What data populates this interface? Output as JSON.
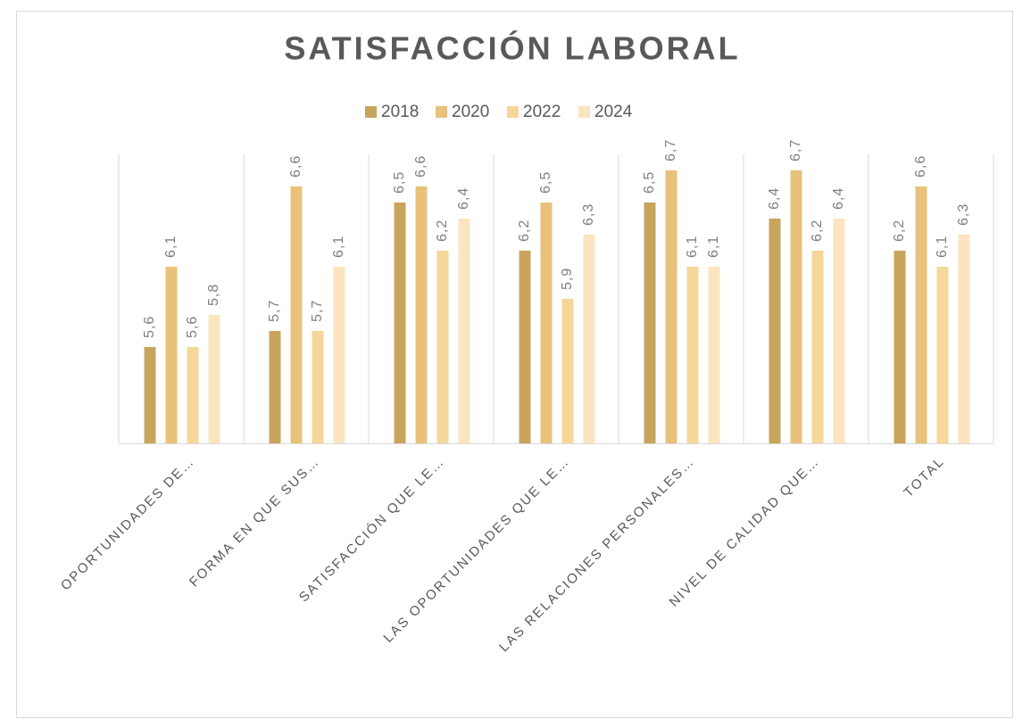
{
  "chart_data": {
    "type": "bar",
    "title": "SATISFACCIÓN LABORAL",
    "categories": [
      "OPORTUNIDADES DE…",
      "FORMA EN QUE SUS…",
      "SATISFACCIÓN QUE LE…",
      "LAS OPORTUNIDADES QUE LE…",
      "LAS RELACIONES PERSONALES…",
      "NIVEL DE CALIDAD QUE…",
      "TOTAL"
    ],
    "series": [
      {
        "name": "2018",
        "color": "#c9a45c",
        "values": [
          5.6,
          5.7,
          6.5,
          6.2,
          6.5,
          6.4,
          6.2
        ],
        "value_labels": [
          "5,6",
          "5,7",
          "6,5",
          "6,2",
          "6,5",
          "6,4",
          "6,2"
        ]
      },
      {
        "name": "2020",
        "color": "#e8c27a",
        "values": [
          6.1,
          6.6,
          6.6,
          6.5,
          6.7,
          6.7,
          6.6
        ],
        "value_labels": [
          "6,1",
          "6,6",
          "6,6",
          "6,5",
          "6,7",
          "6,7",
          "6,6"
        ]
      },
      {
        "name": "2022",
        "color": "#f5d799",
        "values": [
          5.6,
          5.7,
          6.2,
          5.9,
          6.1,
          6.2,
          6.1
        ],
        "value_labels": [
          "5,6",
          "5,7",
          "6,2",
          "5,9",
          "6,1",
          "6,2",
          "6,1"
        ]
      },
      {
        "name": "2024",
        "color": "#fae5c0",
        "values": [
          5.8,
          6.1,
          6.4,
          6.3,
          6.1,
          6.4,
          6.3
        ],
        "value_labels": [
          "5,8",
          "6,1",
          "6,4",
          "6,3",
          "6,1",
          "6,4",
          "6,3"
        ]
      }
    ],
    "ylim": [
      5,
      6.8
    ],
    "legend": "top"
  }
}
